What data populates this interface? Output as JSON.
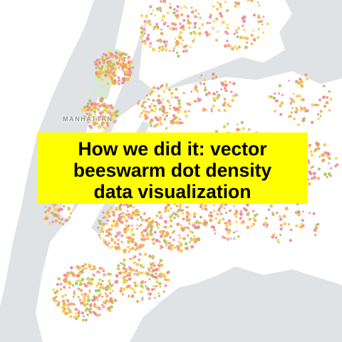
{
  "map": {
    "place_labels": {
      "manhattan": "MANHATTAN"
    },
    "colors": {
      "water": "#dfe3e6",
      "land": "#ffffff",
      "park": "#d9e8d6",
      "dots": [
        "#f6c644",
        "#f4a94b",
        "#f28c7a",
        "#ee7fa6",
        "#e9a0b8",
        "#f7d24f",
        "#9ccc5a",
        "#f0b84d"
      ]
    }
  },
  "title": {
    "lines": [
      "How we did it: vector",
      "beeswarm dot density",
      "data visualization"
    ],
    "background": "#ffff00",
    "color": "#000000"
  }
}
